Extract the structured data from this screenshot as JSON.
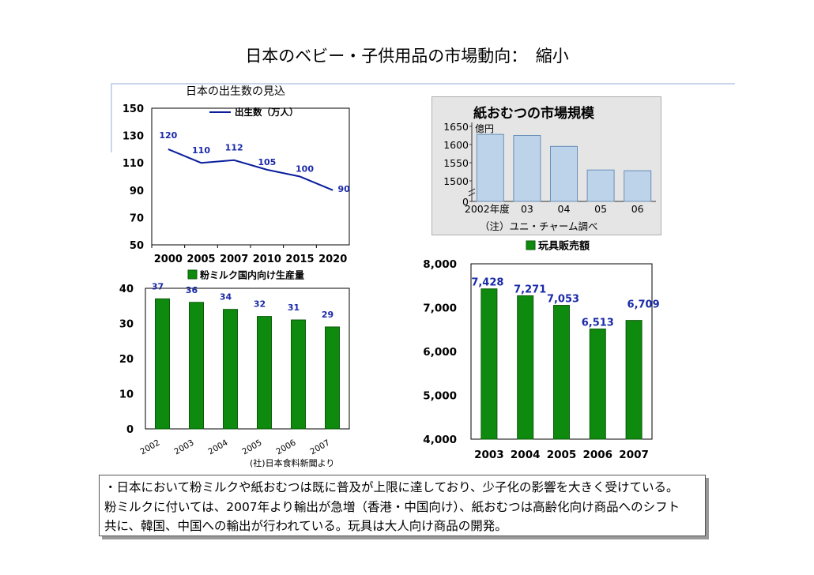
{
  "title": "日本のベビー・子供用品の市場動向：　縮小",
  "source_note": "(社)日本食料新聞より",
  "summary_lines": [
    "・日本において粉ミルクや紙おむつは既に普及が上限に達しており、少子化の影響を大きく受けている。",
    "粉ミルクに付いては、2007年より輸出が急増（香港・中国向け）、紙おむつは高齢化向け商品へのシフト",
    "共に、韓国、中国への輸出が行われている。玩具は大人向け商品の開発。"
  ],
  "colors": {
    "line": "#0a1e9c",
    "green_bar": "#0e8a0e",
    "green_dark": "#0a5a0a",
    "label_blue": "#1a2aa8",
    "diaper_bar": "#bcd3ea"
  },
  "chart_data": [
    {
      "id": "births",
      "type": "line",
      "title": "日本の出生数の見込",
      "legend": "出生数（万人）",
      "categories": [
        "2000",
        "2005",
        "2007",
        "2010",
        "2015",
        "2020"
      ],
      "values": [
        120,
        110,
        112,
        105,
        100,
        90
      ],
      "data_labels": [
        "120",
        "110",
        "112",
        "105",
        "100",
        "90"
      ],
      "y_ticks": [
        "150",
        "130",
        "110",
        "90",
        "70",
        "50"
      ],
      "ylim": [
        50,
        150
      ]
    },
    {
      "id": "milk",
      "type": "bar",
      "legend": "粉ミルク国内向け生産量",
      "categories": [
        "2002",
        "2003",
        "2004",
        "2005",
        "2006",
        "2007"
      ],
      "values": [
        37,
        36,
        34,
        32,
        31,
        29
      ],
      "data_labels": [
        "37",
        "36",
        "34",
        "32",
        "31",
        "29"
      ],
      "y_ticks": [
        "40",
        "30",
        "20",
        "10",
        "0"
      ],
      "ylim": [
        0,
        40
      ]
    },
    {
      "id": "diapers",
      "type": "bar",
      "title": "紙おむつの市場規模",
      "unit": "億円",
      "categories": [
        "2002年度",
        "03",
        "04",
        "05",
        "06"
      ],
      "values": [
        1628,
        1625,
        1595,
        1530,
        1528
      ],
      "y_ticks": [
        "1650",
        "1600",
        "1550",
        "1500",
        "0"
      ],
      "note": "（注）ユニ・チャーム調べ"
    },
    {
      "id": "toys",
      "type": "bar",
      "legend": "玩具販売額",
      "categories": [
        "2003",
        "2004",
        "2005",
        "2006",
        "2007"
      ],
      "values": [
        7428,
        7271,
        7053,
        6513,
        6709
      ],
      "data_labels": [
        "7,428",
        "7,271",
        "7,053",
        "6,513",
        "6,709"
      ],
      "y_ticks": [
        "8,000",
        "7,000",
        "6,000",
        "5,000",
        "4,000"
      ],
      "ylim": [
        4000,
        8000
      ]
    }
  ]
}
